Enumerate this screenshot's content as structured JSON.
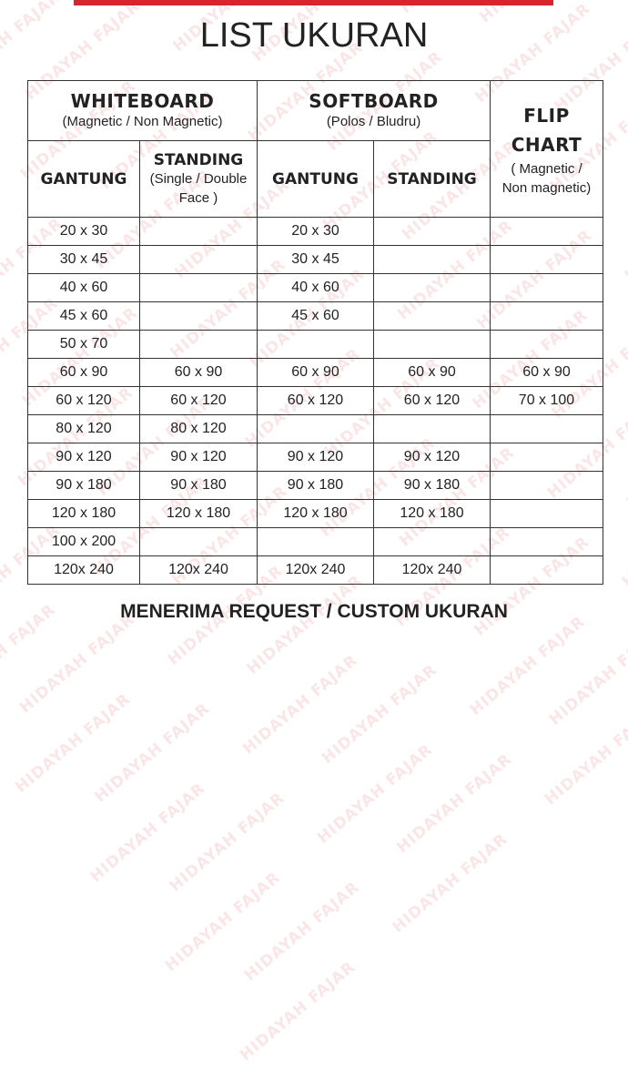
{
  "title": "LIST UKURAN",
  "watermark": "HIDAYAH FAJAR",
  "accent_color": "#d7262b",
  "headers": {
    "whiteboard": {
      "title": "WHITEBOARD",
      "subtitle": "(Magnetic / Non Magnetic)"
    },
    "softboard": {
      "title": "SOFTBOARD",
      "subtitle": "(Polos / Bludru)"
    },
    "flipchart": {
      "title": "FLIP CHART",
      "subtitle": "( Magnetic / Non magnetic)"
    },
    "wb_gantung": "GANTUNG",
    "wb_standing": "STANDING",
    "wb_standing_sub": "(Single / Double Face )",
    "sb_gantung": "GANTUNG",
    "sb_standing": "STANDING"
  },
  "rows": [
    [
      "20 x 30",
      "",
      "20 x 30",
      "",
      ""
    ],
    [
      "30 x 45",
      "",
      "30 x 45",
      "",
      ""
    ],
    [
      "40 x 60",
      "",
      "40 x 60",
      "",
      ""
    ],
    [
      "45 x 60",
      "",
      "45 x 60",
      "",
      ""
    ],
    [
      "50 x 70",
      "",
      "",
      "",
      ""
    ],
    [
      "60 x 90",
      "60 x 90",
      "60 x 90",
      "60 x 90",
      "60 x 90"
    ],
    [
      "60 x 120",
      "60 x 120",
      "60 x 120",
      "60 x 120",
      "70 x 100"
    ],
    [
      "80 x 120",
      "80 x 120",
      "",
      "",
      ""
    ],
    [
      "90 x 120",
      "90 x 120",
      "90 x 120",
      "90 x 120",
      ""
    ],
    [
      "90 x 180",
      "90 x 180",
      "90 x 180",
      "90 x 180",
      ""
    ],
    [
      "120 x 180",
      "120 x 180",
      "120 x 180",
      "120 x 180",
      ""
    ],
    [
      "100 x 200",
      "",
      "",
      "",
      ""
    ],
    [
      "120x 240",
      "120x 240",
      "120x 240",
      "120x 240",
      ""
    ]
  ],
  "footer": "MENERIMA REQUEST / CUSTOM UKURAN"
}
